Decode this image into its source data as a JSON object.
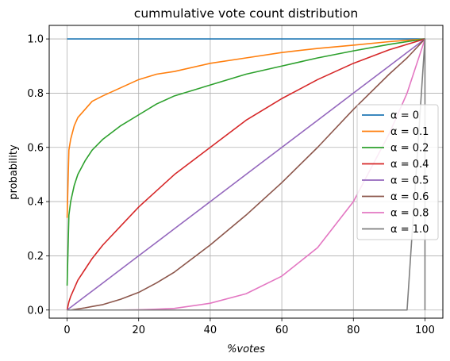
{
  "chart_data": {
    "type": "line",
    "title": "cummulative vote count distribution",
    "xlabel": "%votes",
    "ylabel": "probability",
    "xlim": [
      -5,
      105
    ],
    "ylim": [
      -0.03,
      1.05
    ],
    "xticks": [
      "0",
      "20",
      "40",
      "60",
      "80",
      "100"
    ],
    "yticks": [
      "0.0",
      "0.2",
      "0.4",
      "0.6",
      "0.8",
      "1.0"
    ],
    "grid": true,
    "legend_position": "center-right",
    "x": [
      0,
      0.5,
      1,
      2,
      3,
      5,
      7,
      10,
      15,
      20,
      25,
      30,
      40,
      50,
      60,
      70,
      80,
      90,
      95,
      100
    ],
    "series": [
      {
        "name": "α = 0",
        "color": "#1f77b4",
        "values": [
          1.0,
          1.0,
          1.0,
          1.0,
          1.0,
          1.0,
          1.0,
          1.0,
          1.0,
          1.0,
          1.0,
          1.0,
          1.0,
          1.0,
          1.0,
          1.0,
          1.0,
          1.0,
          1.0,
          1.0
        ]
      },
      {
        "name": "α = 0.1",
        "color": "#ff7f0e",
        "values": [
          0.34,
          0.59,
          0.63,
          0.68,
          0.71,
          0.74,
          0.77,
          0.79,
          0.82,
          0.85,
          0.87,
          0.88,
          0.91,
          0.93,
          0.95,
          0.965,
          0.977,
          0.99,
          0.995,
          1.0
        ]
      },
      {
        "name": "α = 0.2",
        "color": "#2ca02c",
        "values": [
          0.09,
          0.35,
          0.4,
          0.46,
          0.5,
          0.55,
          0.59,
          0.63,
          0.68,
          0.72,
          0.76,
          0.79,
          0.83,
          0.87,
          0.9,
          0.93,
          0.956,
          0.98,
          0.99,
          1.0
        ]
      },
      {
        "name": "α = 0.4",
        "color": "#d62728",
        "values": [
          0.0,
          0.03,
          0.05,
          0.08,
          0.11,
          0.15,
          0.19,
          0.24,
          0.31,
          0.38,
          0.44,
          0.5,
          0.6,
          0.7,
          0.78,
          0.85,
          0.91,
          0.96,
          0.98,
          1.0
        ]
      },
      {
        "name": "α = 0.5",
        "color": "#9467bd",
        "values": [
          0.0,
          0.005,
          0.01,
          0.02,
          0.03,
          0.05,
          0.07,
          0.1,
          0.15,
          0.2,
          0.25,
          0.3,
          0.4,
          0.5,
          0.6,
          0.7,
          0.8,
          0.9,
          0.95,
          1.0
        ]
      },
      {
        "name": "α = 0.6",
        "color": "#8c564b",
        "values": [
          0.0,
          0.0,
          0.0,
          0.002,
          0.004,
          0.008,
          0.013,
          0.02,
          0.04,
          0.065,
          0.1,
          0.14,
          0.24,
          0.35,
          0.47,
          0.6,
          0.74,
          0.87,
          0.93,
          1.0
        ]
      },
      {
        "name": "α = 0.8",
        "color": "#e377c2",
        "values": [
          0.0,
          0.0,
          0.0,
          0.0,
          0.0,
          0.0,
          0.0,
          0.0,
          0.0,
          0.001,
          0.003,
          0.006,
          0.025,
          0.06,
          0.125,
          0.23,
          0.4,
          0.65,
          0.8,
          1.0
        ]
      },
      {
        "name": "α = 1.0",
        "color": "#7f7f7f",
        "values": [
          0.0,
          0.0,
          0.0,
          0.0,
          0.0,
          0.0,
          0.0,
          0.0,
          0.0,
          0.0,
          0.0,
          0.0,
          0.0,
          0.0,
          0.0,
          0.0,
          0.0,
          0.0,
          0.0,
          1.0
        ]
      }
    ]
  }
}
